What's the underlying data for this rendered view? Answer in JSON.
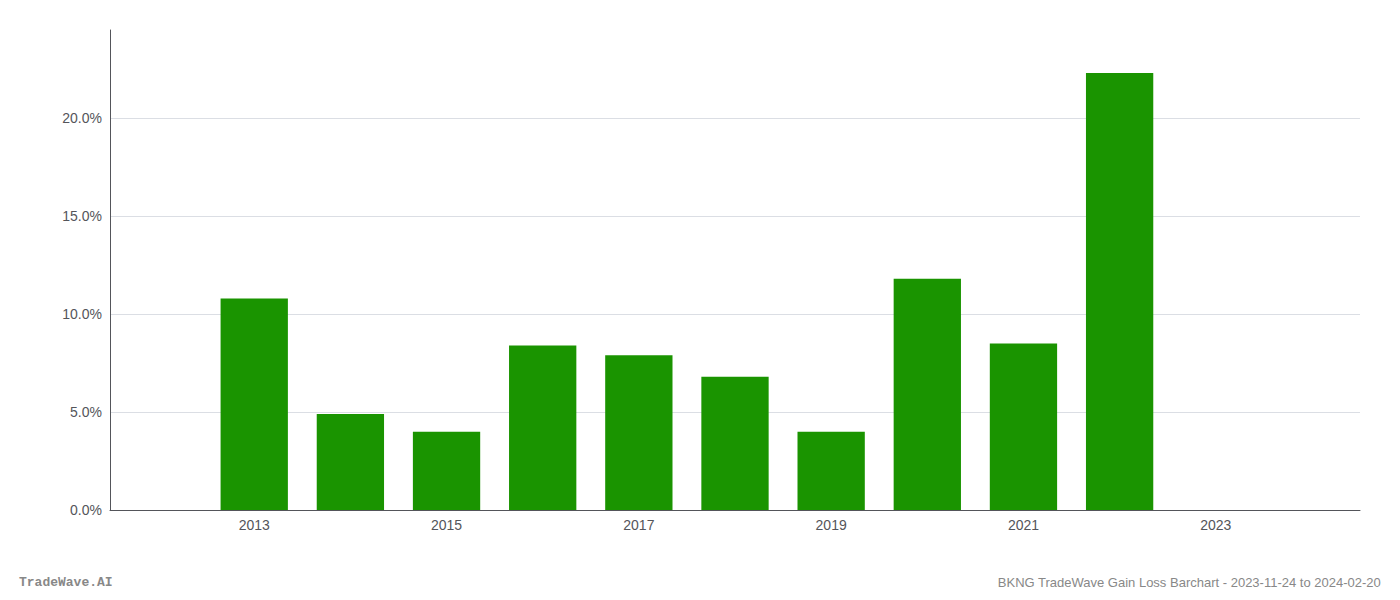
{
  "chart_data": {
    "type": "bar",
    "title": "BKNG TradeWave Gain Loss Barchart - 2023-11-24 to 2024-02-20",
    "annotations": [
      "TradeWave.AI"
    ],
    "x": [
      2013,
      2014,
      2015,
      2016,
      2017,
      2018,
      2019,
      2020,
      2021,
      2022
    ],
    "values": [
      0.108,
      0.049,
      0.04,
      0.084,
      0.079,
      0.068,
      0.04,
      0.118,
      0.085,
      0.223
    ],
    "color": "#1a9400",
    "xlim": [
      2011.5,
      2024.5
    ],
    "xticks": [
      2013,
      2015,
      2017,
      2019,
      2021,
      2023
    ],
    "ylim": [
      0,
      0.245
    ],
    "yticks": [
      {
        "value": 0.0,
        "label": "0.0%"
      },
      {
        "value": 0.05,
        "label": "5.0%"
      },
      {
        "value": 0.1,
        "label": "10.0%"
      },
      {
        "value": 0.15,
        "label": "15.0%"
      },
      {
        "value": 0.2,
        "label": "20.0%"
      }
    ],
    "grid": true
  }
}
